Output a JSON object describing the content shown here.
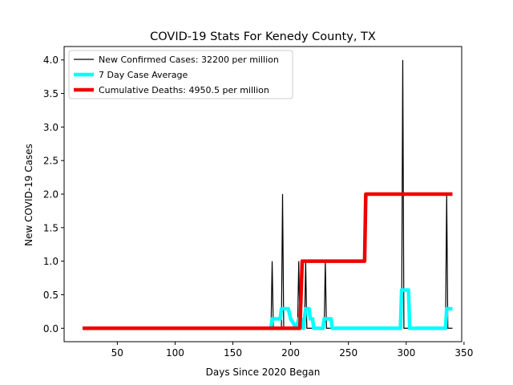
{
  "chart_data": {
    "type": "line",
    "title": "COVID-19 Stats For Kenedy County, TX",
    "xlabel": "Days Since 2020 Began",
    "ylabel": "New COVID-19 Cases",
    "xlim": [
      4,
      348
    ],
    "ylim": [
      -0.2,
      4.2
    ],
    "xticks": [
      50,
      100,
      150,
      200,
      250,
      300,
      350
    ],
    "yticks": [
      0.0,
      0.5,
      1.0,
      1.5,
      2.0,
      2.5,
      3.0,
      3.5,
      4.0
    ],
    "grid": false,
    "legend_position": "top-left",
    "series": [
      {
        "name": "New Confirmed Cases: 32200 per million",
        "color": "#000000",
        "points": [
          [
            20,
            0
          ],
          [
            183,
            0
          ],
          [
            184,
            1
          ],
          [
            185,
            0
          ],
          [
            192,
            0
          ],
          [
            193,
            2
          ],
          [
            194,
            0
          ],
          [
            206,
            0
          ],
          [
            207,
            1
          ],
          [
            208,
            0
          ],
          [
            212,
            0
          ],
          [
            213,
            1
          ],
          [
            214,
            0
          ],
          [
            229,
            0
          ],
          [
            230,
            1
          ],
          [
            231,
            0
          ],
          [
            296,
            0
          ],
          [
            297,
            4
          ],
          [
            298,
            0
          ],
          [
            334,
            0
          ],
          [
            335,
            2
          ],
          [
            336,
            0
          ],
          [
            340,
            0
          ]
        ]
      },
      {
        "name": "7 Day Case Average",
        "color": "#00ffff",
        "points": [
          [
            183,
            0
          ],
          [
            184,
            0.14
          ],
          [
            190,
            0.14
          ],
          [
            191,
            0.14
          ],
          [
            192,
            0.29
          ],
          [
            198,
            0.29
          ],
          [
            200,
            0.14
          ],
          [
            205,
            0
          ],
          [
            207,
            0.14
          ],
          [
            209,
            0.14
          ],
          [
            211,
            0
          ],
          [
            213,
            0.29
          ],
          [
            216,
            0.29
          ],
          [
            217,
            0.14
          ],
          [
            219,
            0.14
          ],
          [
            220,
            0
          ],
          [
            228,
            0
          ],
          [
            229,
            0.14
          ],
          [
            235,
            0.14
          ],
          [
            236,
            0
          ],
          [
            295,
            0
          ],
          [
            296,
            0.57
          ],
          [
            302,
            0.57
          ],
          [
            303,
            0
          ],
          [
            334,
            0
          ],
          [
            335,
            0.29
          ],
          [
            340,
            0.29
          ]
        ]
      },
      {
        "name": "Cumulative Deaths: 4950.5 per million",
        "color": "#ee0000",
        "points": [
          [
            20,
            0
          ],
          [
            208,
            0
          ],
          [
            210,
            1
          ],
          [
            264,
            1
          ],
          [
            265,
            2
          ],
          [
            340,
            2
          ]
        ]
      }
    ]
  }
}
